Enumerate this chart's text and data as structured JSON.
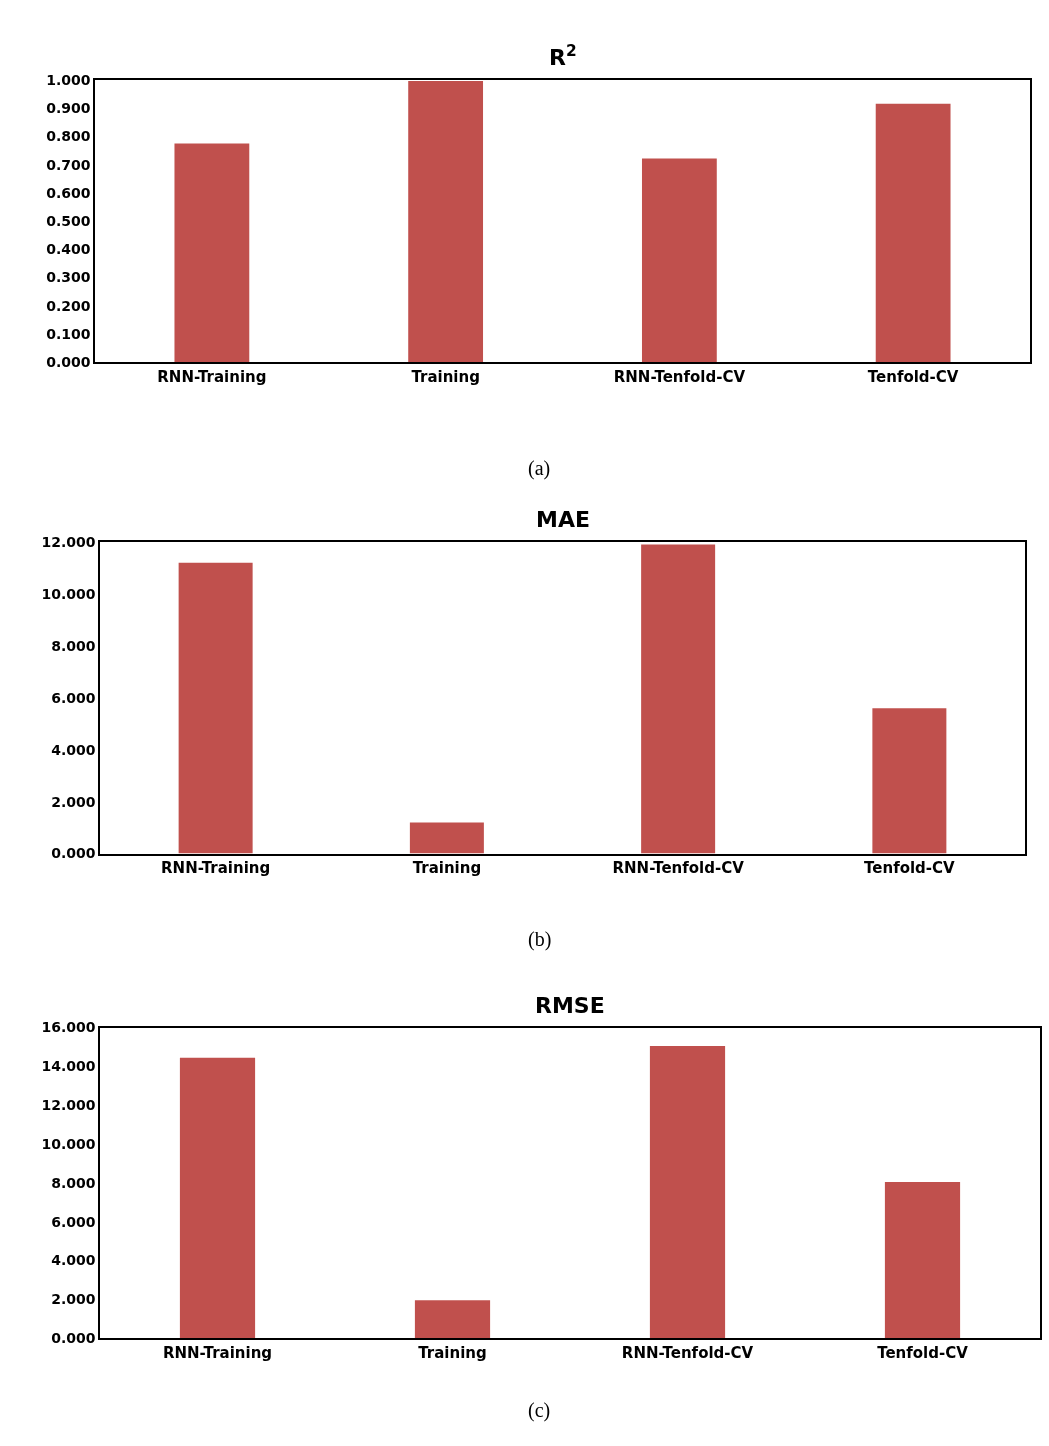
{
  "chart_data": [
    {
      "type": "bar",
      "title": "R$^{2}$",
      "categories": [
        "RNN-Training",
        "Training",
        "RNN-Tenfold-CV",
        "Tenfold-CV"
      ],
      "values": [
        0.775,
        0.997,
        0.722,
        0.916
      ],
      "color": "#c0504d",
      "ylim": [
        0,
        1
      ],
      "yticks": [
        {
          "value": 0,
          "label": "0.000"
        },
        {
          "value": 0.1,
          "label": "0.100"
        },
        {
          "value": 0.2,
          "label": "0.200"
        },
        {
          "value": 0.3,
          "label": "0.300"
        },
        {
          "value": 0.4,
          "label": "0.400"
        },
        {
          "value": 0.5,
          "label": "0.500"
        },
        {
          "value": 0.6,
          "label": "0.600"
        },
        {
          "value": 0.7,
          "label": "0.700"
        },
        {
          "value": 0.8,
          "label": "0.800"
        },
        {
          "value": 0.9,
          "label": "0.900"
        },
        {
          "value": 1,
          "label": "1.000"
        }
      ],
      "grid": false,
      "annotations": [
        "(a)"
      ]
    },
    {
      "type": "bar",
      "title": "MAE",
      "categories": [
        "RNN-Training",
        "Training",
        "RNN-Tenfold-CV",
        "Tenfold-CV"
      ],
      "values": [
        11.2,
        1.2,
        11.9,
        5.6
      ],
      "color": "#c0504d",
      "ylim": [
        0,
        12
      ],
      "yticks": [
        {
          "value": 0,
          "label": "0.000"
        },
        {
          "value": 2,
          "label": "2.000"
        },
        {
          "value": 4,
          "label": "4.000"
        },
        {
          "value": 6,
          "label": "6.000"
        },
        {
          "value": 8,
          "label": "8.000"
        },
        {
          "value": 10,
          "label": "10.000"
        },
        {
          "value": 12,
          "label": "12.000"
        }
      ],
      "grid": false,
      "annotations": [
        "(b)"
      ]
    },
    {
      "type": "bar",
      "title": "RMSE",
      "categories": [
        "RNN-Training",
        "Training",
        "RNN-Tenfold-CV",
        "Tenfold-CV"
      ],
      "values": [
        14.45,
        1.95,
        15.05,
        8.05
      ],
      "color": "#c0504d",
      "ylim": [
        0,
        16
      ],
      "yticks": [
        {
          "value": 0,
          "label": "0.000"
        },
        {
          "value": 2,
          "label": "2.000"
        },
        {
          "value": 4,
          "label": "4.000"
        },
        {
          "value": 6,
          "label": "6.000"
        },
        {
          "value": 8,
          "label": "8.000"
        },
        {
          "value": 10,
          "label": "10.000"
        },
        {
          "value": 12,
          "label": "12.000"
        },
        {
          "value": 14,
          "label": "14.000"
        },
        {
          "value": 16,
          "label": "16.000"
        }
      ],
      "grid": false,
      "annotations": [
        "(c)"
      ]
    }
  ]
}
